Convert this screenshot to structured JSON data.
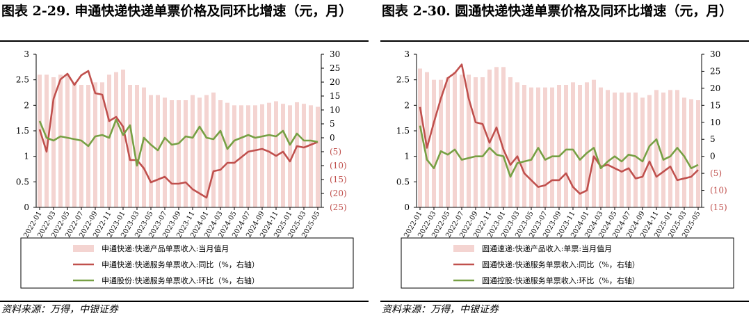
{
  "colors": {
    "bar": "#f4d4d1",
    "yoy": "#c0504d",
    "mom": "#77a044",
    "axis": "#000000"
  },
  "charts": [
    {
      "title": "图表 2-29. 申通快递快递单票价格及同环比增速（元，月）",
      "source": "资料来源：万得，中银证券",
      "chart_data": {
        "type": "bar+line",
        "categories": [
          "2022-01",
          "2022-02",
          "2022-03",
          "2022-04",
          "2022-05",
          "2022-06",
          "2022-07",
          "2022-08",
          "2022-09",
          "2022-10",
          "2022-11",
          "2022-12",
          "2023-01",
          "2023-02",
          "2023-03",
          "2023-04",
          "2023-05",
          "2023-06",
          "2023-07",
          "2023-08",
          "2023-09",
          "2023-10",
          "2023-11",
          "2023-12",
          "2024-01",
          "2024-02",
          "2024-03",
          "2024-04",
          "2024-05",
          "2024-06",
          "2024-07",
          "2024-08",
          "2024-09",
          "2024-10",
          "2024-11",
          "2024-12",
          "2025-01",
          "2025-02",
          "2025-03",
          "2025-04",
          "2025-05"
        ],
        "x_tick_labels": [
          "2022-01",
          "2022-03",
          "2022-05",
          "2022-07",
          "2022-09",
          "2022-11",
          "2023-01",
          "2023-03",
          "2023-05",
          "2023-07",
          "2023-09",
          "2023-11",
          "2024-01",
          "2024-03",
          "2024-05",
          "2024-07",
          "2024-09",
          "2024-11",
          "2025-01",
          "2025-03",
          "2025-05"
        ],
        "y_left": {
          "min": 0,
          "max": 3,
          "step": 0.5,
          "tick_labels": [
            "0",
            "0.5",
            "1",
            "1.5",
            "2",
            "2.5",
            "3"
          ]
        },
        "y_right": {
          "min": -25,
          "max": 30,
          "step": 5,
          "tick_labels": [
            "(25)",
            "(20)",
            "(15)",
            "(10)",
            "(5)",
            "0",
            "5",
            "10",
            "15",
            "20",
            "25",
            "30"
          ]
        },
        "legend_position": "bottom",
        "series": [
          {
            "name": "申通快递:快递产品单票收入:当月值月",
            "kind": "bar",
            "axis": "left",
            "values": [
              2.6,
              2.6,
              2.55,
              2.6,
              2.6,
              2.45,
              2.4,
              2.4,
              2.45,
              2.45,
              2.6,
              2.65,
              2.7,
              2.4,
              2.4,
              2.35,
              2.2,
              2.2,
              2.15,
              2.1,
              2.1,
              2.1,
              2.2,
              2.15,
              2.2,
              2.25,
              2.1,
              2.05,
              2.0,
              2.0,
              2.0,
              2.0,
              2.02,
              2.05,
              2.08,
              2.03,
              2.0,
              2.06,
              2.03,
              2.0,
              1.97
            ]
          },
          {
            "name": "申通快递:快递服务单票收入:同比（%，右轴）",
            "kind": "line",
            "axis": "right",
            "values": [
              3,
              -5,
              14,
              21,
              23,
              19,
              22.5,
              24,
              16,
              15.5,
              6,
              7.5,
              4,
              -8,
              -8,
              -11,
              -16,
              -15,
              -14,
              -16.5,
              -16.5,
              -16,
              -18.5,
              -20,
              -21.5,
              -12,
              -11.5,
              -9,
              -9,
              -7,
              -5,
              -4.5,
              -4,
              -5,
              -6.5,
              -5,
              -8.5,
              -3,
              -3.5,
              -2.5,
              -1.5
            ]
          },
          {
            "name": "申通股份:快递服务单票收入:环比（%，右轴）",
            "kind": "line",
            "axis": "right",
            "values": [
              6,
              0,
              -1,
              0.5,
              0,
              -0.5,
              -1,
              -3,
              0.5,
              1,
              0,
              6.5,
              1,
              4.5,
              -10,
              0,
              -2.5,
              -4.5,
              0,
              -2.5,
              -2,
              0.5,
              0,
              4,
              0,
              -0.5,
              2.5,
              -4,
              -1,
              0,
              1,
              0,
              0.5,
              1,
              0.5,
              2.5,
              -2.5,
              1.5,
              -1,
              -1,
              -1.5
            ]
          }
        ]
      }
    },
    {
      "title": "图表 2-30. 圆通快递快递单票价格及同环比增速（元，月）",
      "source": "资料来源：万得，中银证券",
      "chart_data": {
        "type": "bar+line",
        "categories": [
          "2022-01",
          "2022-02",
          "2022-03",
          "2022-04",
          "2022-05",
          "2022-06",
          "2022-07",
          "2022-08",
          "2022-09",
          "2022-10",
          "2022-11",
          "2022-12",
          "2023-01",
          "2023-02",
          "2023-03",
          "2023-04",
          "2023-05",
          "2023-06",
          "2023-07",
          "2023-08",
          "2023-09",
          "2023-10",
          "2023-11",
          "2023-12",
          "2024-01",
          "2024-02",
          "2024-03",
          "2024-04",
          "2024-05",
          "2024-06",
          "2024-07",
          "2024-08",
          "2024-09",
          "2024-10",
          "2024-11",
          "2024-12",
          "2025-01",
          "2025-02",
          "2025-03",
          "2025-04",
          "2025-05"
        ],
        "x_tick_labels": [
          "2022-01",
          "2022-03",
          "2022-05",
          "2022-07",
          "2022-09",
          "2022-11",
          "2023-01",
          "2023-03",
          "2023-05",
          "2023-07",
          "2023-09",
          "2023-11",
          "2024-01",
          "2024-03",
          "2024-05",
          "2024-07",
          "2024-09",
          "2024-11",
          "2025-01",
          "2025-03",
          "2025-05"
        ],
        "y_left": {
          "min": 0,
          "max": 3,
          "step": 0.5,
          "tick_labels": [
            "0",
            "0.5",
            "1",
            "1.5",
            "2",
            "2.5",
            "3"
          ]
        },
        "y_right": {
          "min": -15,
          "max": 30,
          "step": 5,
          "tick_labels": [
            "(15)",
            "(10)",
            "(5)",
            "0",
            "5",
            "10",
            "15",
            "20",
            "25",
            "30"
          ]
        },
        "legend_position": "bottom",
        "series": [
          {
            "name": "圆通速递:快递产品收入:单票:当月值月",
            "kind": "bar",
            "axis": "left",
            "values": [
              2.72,
              2.65,
              2.5,
              2.5,
              2.55,
              2.65,
              2.6,
              2.6,
              2.55,
              2.55,
              2.7,
              2.75,
              2.75,
              2.55,
              2.45,
              2.4,
              2.35,
              2.35,
              2.35,
              2.35,
              2.4,
              2.4,
              2.45,
              2.4,
              2.45,
              2.5,
              2.35,
              2.3,
              2.25,
              2.25,
              2.25,
              2.25,
              2.15,
              2.2,
              2.3,
              2.25,
              2.3,
              2.3,
              2.15,
              2.12,
              2.1
            ]
          },
          {
            "name": "圆通快递:快递服务单票收入:同比（%，右轴）",
            "kind": "line",
            "axis": "right",
            "values": [
              14.5,
              2.5,
              10,
              17,
              23,
              24.5,
              27,
              17,
              10,
              9.5,
              4,
              8.5,
              2,
              -2.5,
              0,
              -5,
              -7,
              -9,
              -8.5,
              -7,
              -7,
              -5,
              -9,
              -11,
              -10,
              0,
              -3,
              -2.5,
              -3.5,
              -4.5,
              -3.5,
              -6.5,
              -6,
              -1.5,
              -6,
              -4.5,
              -3,
              -7,
              -6.5,
              -6,
              -4
            ]
          },
          {
            "name": "圆通控股:快递服务单票收入:环比（%，右轴）",
            "kind": "line",
            "axis": "right",
            "values": [
              9,
              -1,
              -3.5,
              1.5,
              0.5,
              2,
              -1,
              -0.5,
              0,
              0,
              2.5,
              0.5,
              0,
              -6,
              -2,
              -1.5,
              -1,
              2.5,
              -1,
              0,
              0,
              2,
              2,
              -1,
              1,
              2.5,
              -3.5,
              -1.5,
              0,
              -1.5,
              0.5,
              0,
              -1.5,
              3,
              5,
              -1,
              0,
              2.5,
              0,
              -3.5,
              -2.5
            ]
          }
        ]
      }
    }
  ]
}
